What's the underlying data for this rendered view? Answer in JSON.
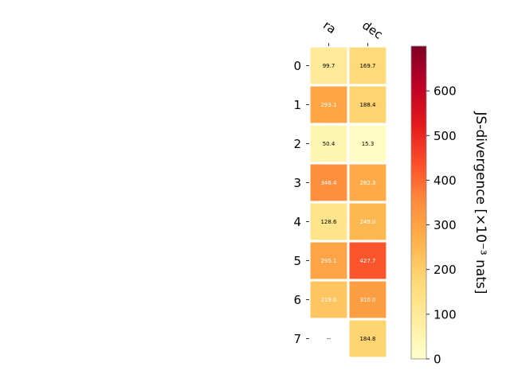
{
  "chart_data": {
    "type": "heatmap",
    "columns": [
      "ra",
      "dec"
    ],
    "rows": [
      "0",
      "1",
      "2",
      "3",
      "4",
      "5",
      "6",
      "7"
    ],
    "values": [
      [
        99.7,
        169.7
      ],
      [
        293.1,
        188.4
      ],
      [
        50.4,
        15.3
      ],
      [
        346.4,
        282.3
      ],
      [
        128.6,
        249.0
      ],
      [
        295.1,
        427.7
      ],
      [
        219.0,
        310.0
      ],
      [
        null,
        184.8
      ]
    ],
    "cell_labels": [
      [
        "99.7",
        "169.7"
      ],
      [
        "293.1",
        "188.4"
      ],
      [
        "50.4",
        "15.3"
      ],
      [
        "346.4",
        "282.3"
      ],
      [
        "128.6",
        "249.0"
      ],
      [
        "295.1",
        "427.7"
      ],
      [
        "219.0",
        "310.0"
      ],
      [
        "--",
        "184.8"
      ]
    ],
    "colormap": "YlOrRd",
    "vmin": 0,
    "vmax": 700,
    "colorbar": {
      "label": "JS-divergence [×10⁻³ nats]",
      "ticks": [
        0,
        100,
        200,
        300,
        400,
        500,
        600
      ],
      "tick_labels": [
        "0",
        "100",
        "200",
        "300",
        "400",
        "500",
        "600"
      ]
    }
  }
}
